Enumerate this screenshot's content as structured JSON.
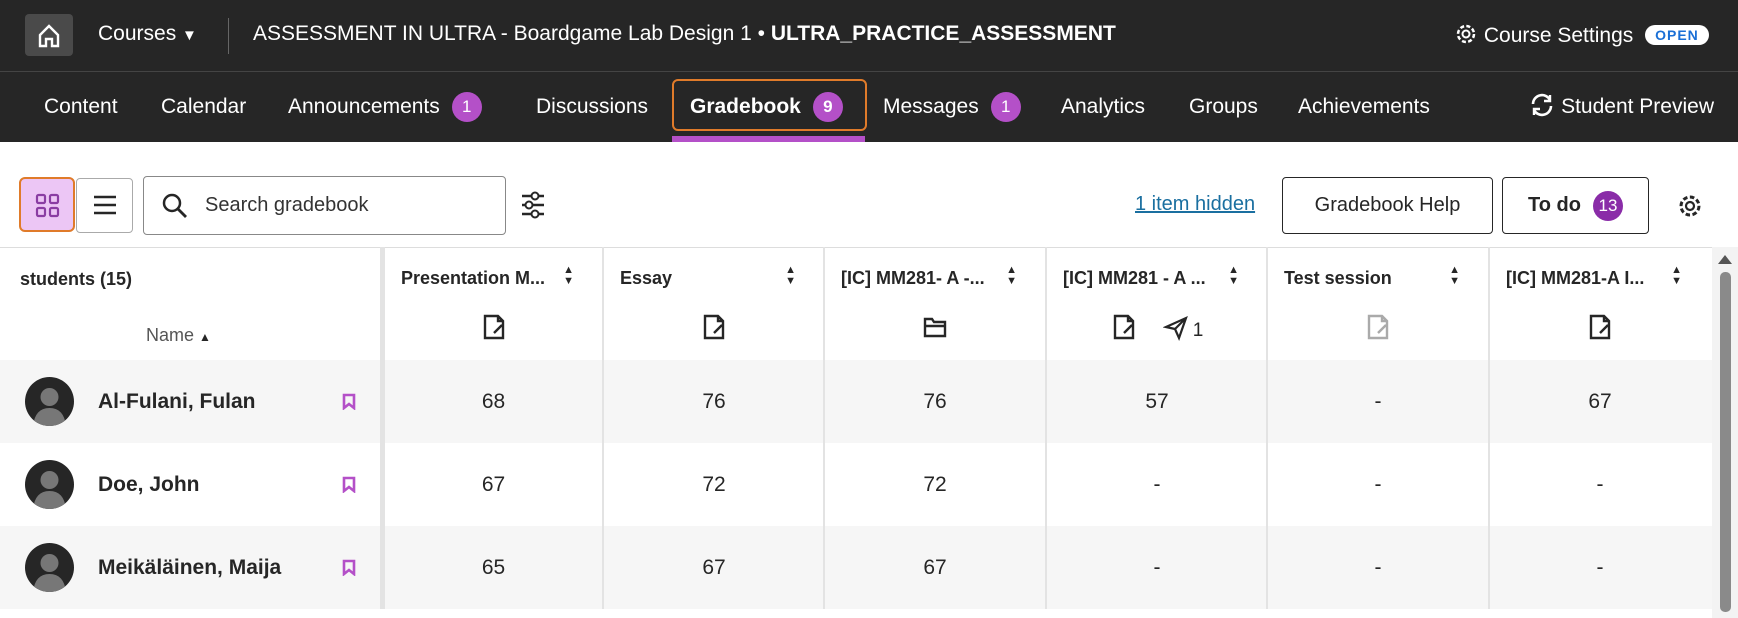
{
  "header": {
    "courses": "Courses",
    "course_title": "ASSESSMENT IN ULTRA - Boardgame Lab Design 1",
    "separator": "•",
    "course_id": "ULTRA_PRACTICE_ASSESSMENT",
    "settings": "Course Settings",
    "status": "OPEN"
  },
  "nav": {
    "items": [
      {
        "label": "Content"
      },
      {
        "label": "Calendar"
      },
      {
        "label": "Announcements",
        "badge": 1
      },
      {
        "label": "Discussions"
      },
      {
        "label": "Gradebook",
        "badge": 9
      },
      {
        "label": "Messages",
        "badge": 1
      },
      {
        "label": "Analytics"
      },
      {
        "label": "Groups"
      },
      {
        "label": "Achievements"
      }
    ],
    "student_preview": "Student Preview"
  },
  "toolbar": {
    "search_placeholder": "Search gradebook",
    "hidden_link": "1 item hidden",
    "help": "Gradebook Help",
    "todo": "To do",
    "todo_count": 13
  },
  "table": {
    "students_header": "students (15)",
    "name_sort": "Name",
    "columns": [
      {
        "title": "Presentation M..."
      },
      {
        "title": "Essay"
      },
      {
        "title": "[IC] MM281- A -..."
      },
      {
        "title": "[IC] MM281 - A ...",
        "submissions": 1
      },
      {
        "title": "Test session"
      },
      {
        "title": "[IC] MM281-A I..."
      }
    ],
    "rows": [
      {
        "name": "Al-Fulani, Fulan",
        "grades": [
          68,
          76,
          76,
          57,
          "-",
          67
        ]
      },
      {
        "name": "Doe, John",
        "grades": [
          67,
          72,
          72,
          "-",
          "-",
          "-"
        ]
      },
      {
        "name": "Meikäläinen, Maija",
        "grades": [
          65,
          67,
          67,
          "-",
          "-",
          "-"
        ]
      }
    ]
  }
}
